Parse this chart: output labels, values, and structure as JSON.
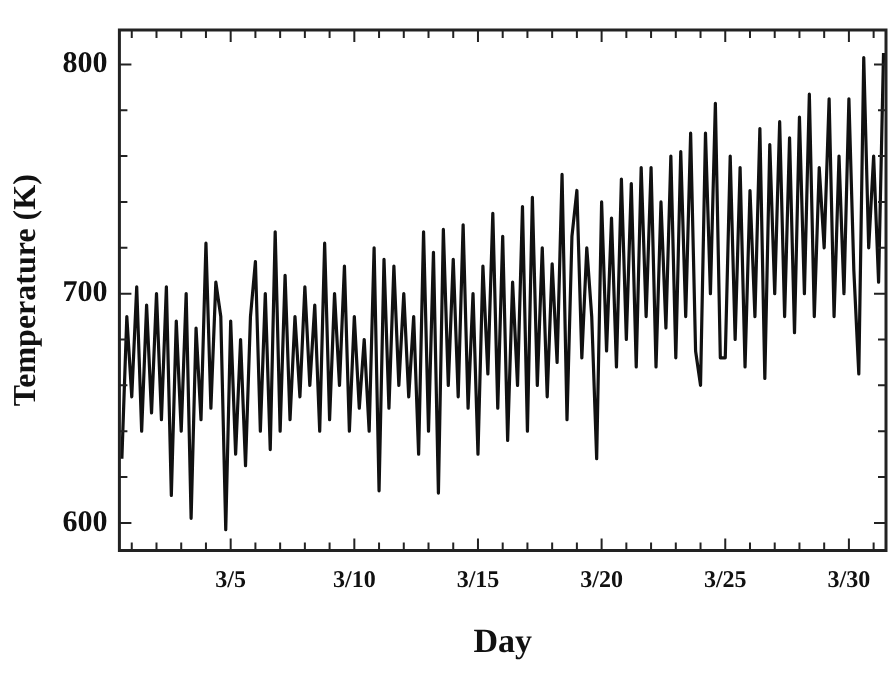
{
  "chart_data": {
    "type": "line",
    "xlabel": "Day",
    "ylabel": "Temperature (K)",
    "xlim": [
      "--03-01",
      "--04-01"
    ],
    "ylim": [
      588,
      815
    ],
    "xticks": [
      {
        "value": "--03-01T12:00",
        "label": null
      },
      {
        "value": "--03-02T12:00",
        "label": null
      },
      {
        "value": "--03-03T12:00",
        "label": null
      },
      {
        "value": "--03-04T12:00",
        "label": null
      },
      {
        "value": "--03-05T12:00",
        "label": "3/5"
      },
      {
        "value": "--03-06T12:00",
        "label": null
      },
      {
        "value": "--03-07T12:00",
        "label": null
      },
      {
        "value": "--03-08T12:00",
        "label": null
      },
      {
        "value": "--03-09T12:00",
        "label": null
      },
      {
        "value": "--03-10T12:00",
        "label": "3/10"
      },
      {
        "value": "--03-11T12:00",
        "label": null
      },
      {
        "value": "--03-12T12:00",
        "label": null
      },
      {
        "value": "--03-13T12:00",
        "label": null
      },
      {
        "value": "--03-14T12:00",
        "label": null
      },
      {
        "value": "--03-15T12:00",
        "label": "3/15"
      },
      {
        "value": "--03-16T12:00",
        "label": null
      },
      {
        "value": "--03-17T12:00",
        "label": null
      },
      {
        "value": "--03-18T12:00",
        "label": null
      },
      {
        "value": "--03-19T12:00",
        "label": null
      },
      {
        "value": "--03-20T12:00",
        "label": "3/20"
      },
      {
        "value": "--03-21T12:00",
        "label": null
      },
      {
        "value": "--03-22T12:00",
        "label": null
      },
      {
        "value": "--03-23T12:00",
        "label": null
      },
      {
        "value": "--03-24T12:00",
        "label": null
      },
      {
        "value": "--03-25T12:00",
        "label": "3/25"
      },
      {
        "value": "--03-26T12:00",
        "label": null
      },
      {
        "value": "--03-27T12:00",
        "label": null
      },
      {
        "value": "--03-28T12:00",
        "label": null
      },
      {
        "value": "--03-29T12:00",
        "label": null
      },
      {
        "value": "--03-30T12:00",
        "label": "3/30"
      },
      {
        "value": "--03-31T12:00",
        "label": null
      }
    ],
    "yticks": [
      600,
      {
        "value": 620,
        "label": null
      },
      {
        "value": 640,
        "label": null
      },
      {
        "value": 660,
        "label": null
      },
      {
        "value": 680,
        "label": null
      },
      700,
      {
        "value": 720,
        "label": null
      },
      {
        "value": 740,
        "label": null
      },
      {
        "value": 760,
        "label": null
      },
      {
        "value": 780,
        "label": null
      },
      800
    ],
    "grid": false,
    "legend": false,
    "marker": "none",
    "line_style": "solid",
    "series": [
      {
        "color": "#111111",
        "x": [
          "--03-01T02:24",
          "--03-01T07:12",
          "--03-01T12:00",
          "--03-01T16:48",
          "--03-01T21:36",
          "--03-02T02:24",
          "--03-02T07:12",
          "--03-02T12:00",
          "--03-02T16:48",
          "--03-02T21:36",
          "--03-03T02:24",
          "--03-03T07:12",
          "--03-03T12:00",
          "--03-03T16:48",
          "--03-03T21:36",
          "--03-04T02:24",
          "--03-04T07:12",
          "--03-04T12:00",
          "--03-04T16:48",
          "--03-04T21:36",
          "--03-05T02:24",
          "--03-05T07:12",
          "--03-05T12:00",
          "--03-05T16:48",
          "--03-05T21:36",
          "--03-06T02:24",
          "--03-06T07:12",
          "--03-06T12:00",
          "--03-06T16:48",
          "--03-06T21:36",
          "--03-07T02:24",
          "--03-07T07:12",
          "--03-07T12:00",
          "--03-07T16:48",
          "--03-07T21:36",
          "--03-08T02:24",
          "--03-08T07:12",
          "--03-08T12:00",
          "--03-08T16:48",
          "--03-08T21:36",
          "--03-09T02:24",
          "--03-09T07:12",
          "--03-09T12:00",
          "--03-09T16:48",
          "--03-09T21:36",
          "--03-10T02:24",
          "--03-10T07:12",
          "--03-10T12:00",
          "--03-10T16:48",
          "--03-10T21:36",
          "--03-11T02:24",
          "--03-11T07:12",
          "--03-11T12:00",
          "--03-11T16:48",
          "--03-11T21:36",
          "--03-12T02:24",
          "--03-12T07:12",
          "--03-12T12:00",
          "--03-12T16:48",
          "--03-12T21:36",
          "--03-13T02:24",
          "--03-13T07:12",
          "--03-13T12:00",
          "--03-13T16:48",
          "--03-13T21:36",
          "--03-14T02:24",
          "--03-14T07:12",
          "--03-14T12:00",
          "--03-14T16:48",
          "--03-14T21:36",
          "--03-15T02:24",
          "--03-15T07:12",
          "--03-15T12:00",
          "--03-15T16:48",
          "--03-15T21:36",
          "--03-16T02:24",
          "--03-16T07:12",
          "--03-16T12:00",
          "--03-16T16:48",
          "--03-16T21:36",
          "--03-17T02:24",
          "--03-17T07:12",
          "--03-17T12:00",
          "--03-17T16:48",
          "--03-17T21:36",
          "--03-18T02:24",
          "--03-18T07:12",
          "--03-18T12:00",
          "--03-18T16:48",
          "--03-18T21:36",
          "--03-19T02:24",
          "--03-19T07:12",
          "--03-19T12:00",
          "--03-19T16:48",
          "--03-19T21:36",
          "--03-20T02:24",
          "--03-20T07:12",
          "--03-20T12:00",
          "--03-20T16:48",
          "--03-20T21:36",
          "--03-21T02:24",
          "--03-21T07:12",
          "--03-21T12:00",
          "--03-21T16:48",
          "--03-21T21:36",
          "--03-22T02:24",
          "--03-22T07:12",
          "--03-22T12:00",
          "--03-22T16:48",
          "--03-22T21:36",
          "--03-23T02:24",
          "--03-23T07:12",
          "--03-23T12:00",
          "--03-23T16:48",
          "--03-23T21:36",
          "--03-24T02:24",
          "--03-24T07:12",
          "--03-24T12:00",
          "--03-24T16:48",
          "--03-24T21:36",
          "--03-25T02:24",
          "--03-25T07:12",
          "--03-25T12:00",
          "--03-25T16:48",
          "--03-25T21:36",
          "--03-26T02:24",
          "--03-26T07:12",
          "--03-26T12:00",
          "--03-26T16:48",
          "--03-26T21:36",
          "--03-27T02:24",
          "--03-27T07:12",
          "--03-27T12:00",
          "--03-27T16:48",
          "--03-27T21:36",
          "--03-28T02:24",
          "--03-28T07:12",
          "--03-28T12:00",
          "--03-28T16:48",
          "--03-28T21:36",
          "--03-29T02:24",
          "--03-29T07:12",
          "--03-29T12:00",
          "--03-29T16:48",
          "--03-29T21:36",
          "--03-30T02:24",
          "--03-30T07:12",
          "--03-30T12:00",
          "--03-30T16:48",
          "--03-30T21:36",
          "--03-31T02:24",
          "--03-31T07:12",
          "--03-31T12:00",
          "--03-31T16:48",
          "--03-31T21:36"
        ],
        "values": [
          628,
          690,
          655,
          703,
          640,
          695,
          648,
          700,
          645,
          703,
          612,
          688,
          640,
          700,
          602,
          685,
          645,
          722,
          650,
          705,
          690,
          597,
          688,
          630,
          680,
          625,
          690,
          714,
          640,
          700,
          632,
          727,
          640,
          708,
          645,
          690,
          655,
          703,
          660,
          695,
          640,
          722,
          645,
          700,
          660,
          712,
          640,
          690,
          650,
          680,
          640,
          720,
          614,
          715,
          650,
          712,
          660,
          700,
          655,
          690,
          630,
          727,
          640,
          718,
          613,
          728,
          660,
          715,
          655,
          730,
          650,
          700,
          630,
          712,
          665,
          735,
          650,
          725,
          636,
          705,
          660,
          738,
          640,
          742,
          660,
          720,
          655,
          713,
          670,
          752,
          645,
          725,
          745,
          672,
          720,
          690,
          628,
          740,
          675,
          733,
          668,
          750,
          680,
          748,
          668,
          755,
          690,
          755,
          668,
          740,
          685,
          760,
          672,
          762,
          690,
          770,
          675,
          660,
          770,
          700,
          783,
          672,
          672,
          760,
          680,
          755,
          668,
          745,
          690,
          772,
          663,
          765,
          700,
          775,
          690,
          768,
          683,
          777,
          700,
          787,
          690,
          755,
          720,
          785,
          690,
          760,
          700,
          785,
          710,
          665,
          803,
          720,
          760,
          705,
          805
        ]
      }
    ]
  }
}
